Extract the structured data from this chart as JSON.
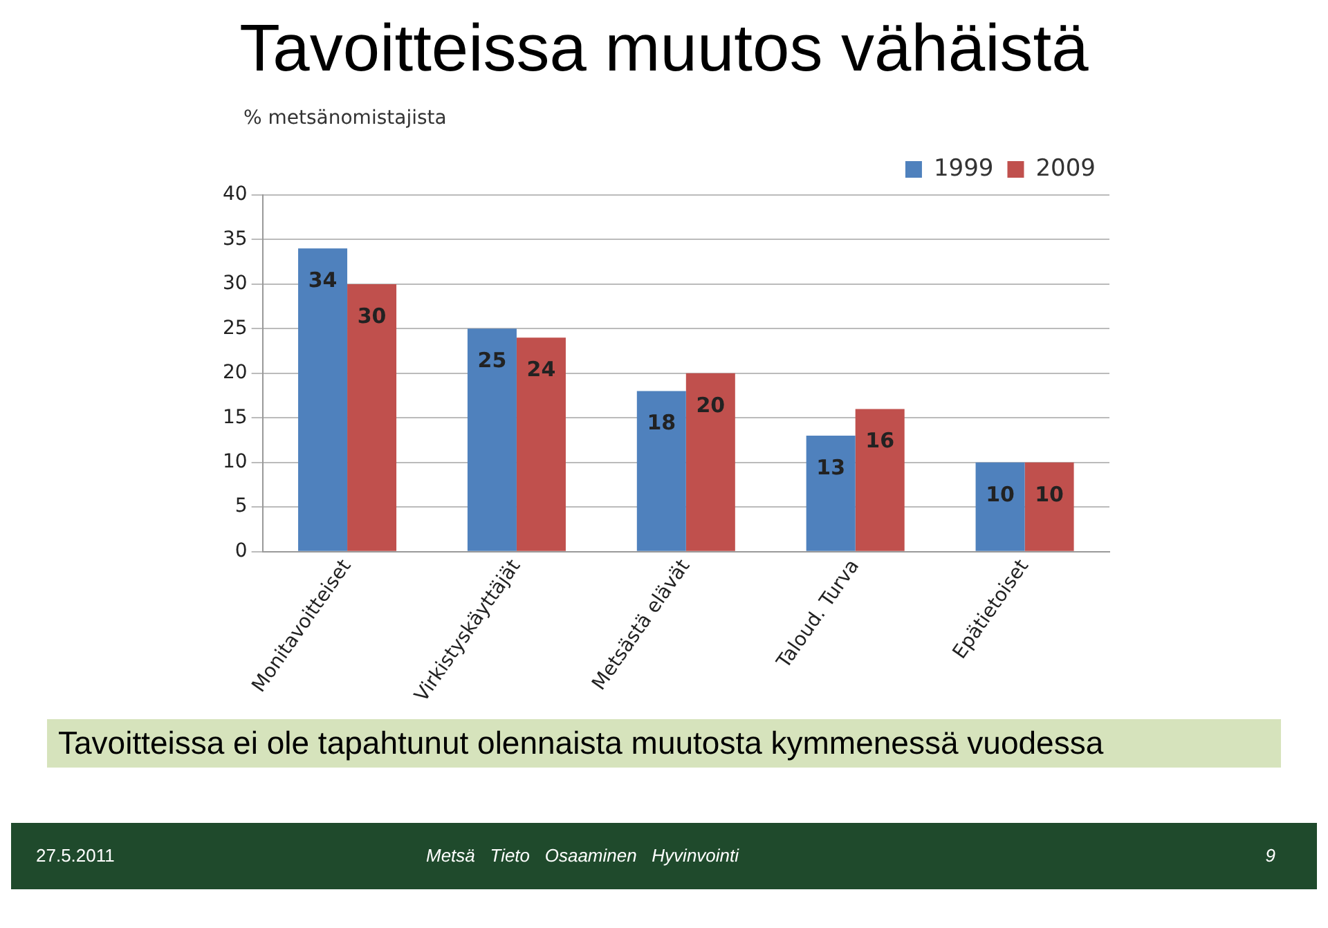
{
  "chart_data": {
    "type": "bar",
    "title": "Tavoitteissa muutos vähäistä",
    "subtitle": "Tavoitteissa ei ole tapahtunut olennaista muutosta kymmenessä vuodessa",
    "ylabel": "% metsänomistajista",
    "categories": [
      "Monitavoitteiset",
      "Virkistyskäyttäjät",
      "Metsästä elävät",
      "Taloud. Turva",
      "Epätietoiset"
    ],
    "series": [
      {
        "name": "1999",
        "color": "#4f81bd",
        "values": [
          34,
          25,
          18,
          13,
          10
        ]
      },
      {
        "name": "2009",
        "color": "#c0504d",
        "values": [
          30,
          24,
          20,
          16,
          10
        ]
      }
    ],
    "ylim": [
      0,
      40
    ],
    "yticks": [
      0,
      5,
      10,
      15,
      20,
      25,
      30,
      35,
      40
    ],
    "grid": "y",
    "legend": "top right",
    "data_labels": true,
    "annotations": [
      "27.5.2011",
      "Metsä   Tieto   Osaaminen   Hyvinvointi",
      "9"
    ]
  }
}
